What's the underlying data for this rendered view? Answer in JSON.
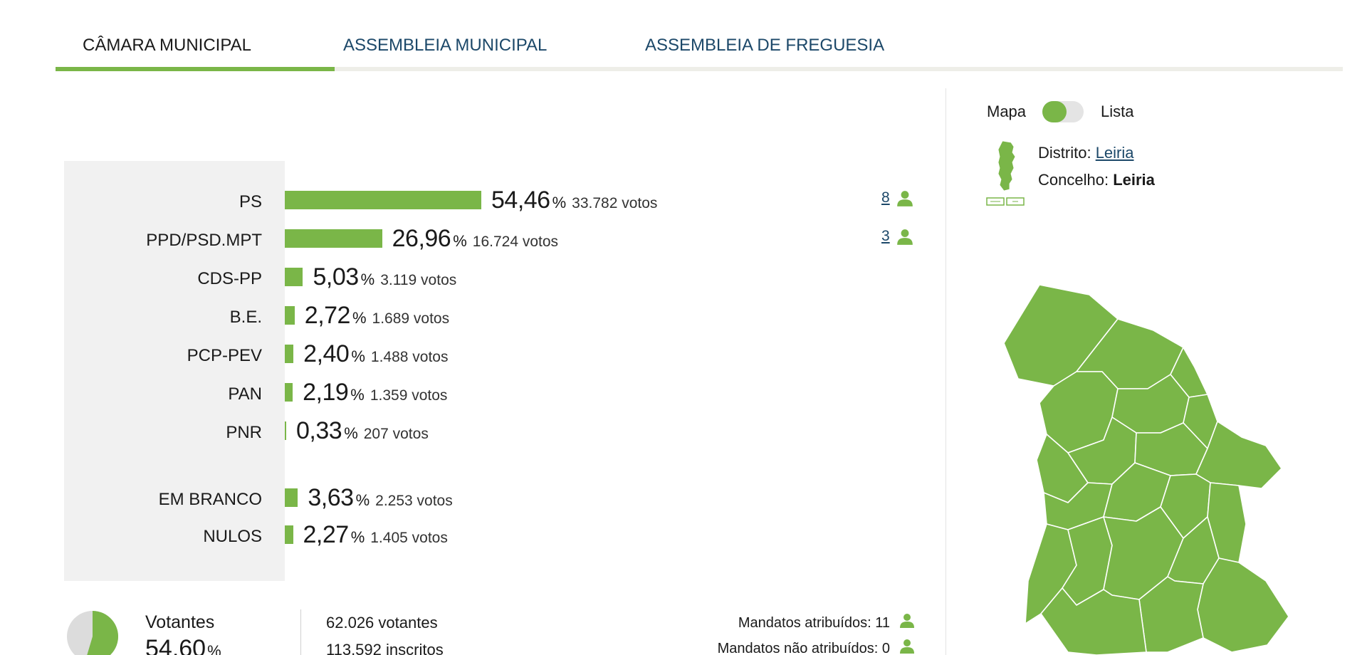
{
  "tabs": [
    {
      "label": "CÂMARA MUNICIPAL",
      "active": true
    },
    {
      "label": "ASSEMBLEIA MUNICIPAL",
      "active": false
    },
    {
      "label": "ASSEMBLEIA DE FREGUESIA",
      "active": false
    }
  ],
  "results": [
    {
      "party": "PS",
      "pct": "54,46",
      "votes": "33.782 votos",
      "seats": "8",
      "share": 54.46
    },
    {
      "party": "PPD/PSD.MPT",
      "pct": "26,96",
      "votes": "16.724 votos",
      "seats": "3",
      "share": 26.96
    },
    {
      "party": "CDS-PP",
      "pct": "5,03",
      "votes": "3.119 votos",
      "share": 5.03
    },
    {
      "party": "B.E.",
      "pct": "2,72",
      "votes": "1.689 votos",
      "share": 2.72
    },
    {
      "party": "PCP-PEV",
      "pct": "2,40",
      "votes": "1.488 votos",
      "share": 2.4
    },
    {
      "party": "PAN",
      "pct": "2,19",
      "votes": "1.359 votos",
      "share": 2.19
    },
    {
      "party": "PNR",
      "pct": "0,33",
      "votes": "207 votos",
      "share": 0.33
    }
  ],
  "other_results": [
    {
      "label": "EM BRANCO",
      "pct": "3,63",
      "votes": "2.253 votos",
      "share": 3.63
    },
    {
      "label": "NULOS",
      "pct": "2,27",
      "votes": "1.405 votos",
      "share": 2.27
    }
  ],
  "percent_symbol": "%",
  "turnout": {
    "label": "Votantes",
    "pct": "54,60",
    "share": 54.6,
    "votantes": "62.026 votantes",
    "inscritos": "113.592 inscritos"
  },
  "mandatos": {
    "atribuidos": "Mandatos atribuídos: 11",
    "nao_atribuidos": "Mandatos não atribuídos: 0"
  },
  "view_toggle": {
    "left": "Mapa",
    "right": "Lista",
    "selected": "Mapa"
  },
  "location": {
    "distrito_label": "Distrito:",
    "distrito": "Leiria",
    "concelho_label": "Concelho:",
    "concelho": "Leiria"
  },
  "colors": {
    "accent": "#7ab648",
    "link": "#1c4869",
    "panel_bg": "#f1f1f1"
  },
  "icons": {
    "seat": "person-icon",
    "mini_map": "portugal-map-icon",
    "municipality_map": "municipality-map"
  }
}
